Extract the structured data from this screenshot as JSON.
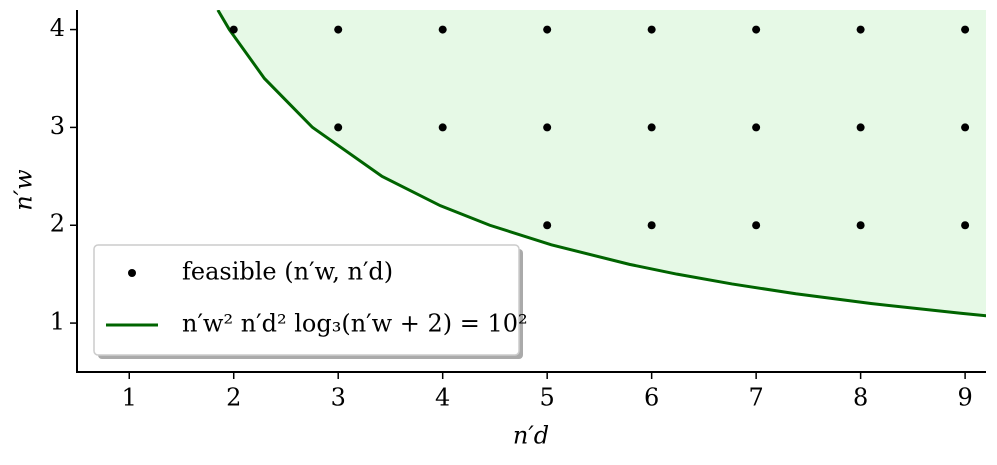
{
  "chart_data": {
    "type": "scatter",
    "xlabel": "n′d",
    "ylabel": "n′w",
    "xlim": [
      0.5,
      9.2
    ],
    "ylim": [
      0.5,
      4.2
    ],
    "xticks": [
      1,
      2,
      3,
      4,
      5,
      6,
      7,
      8,
      9
    ],
    "yticks": [
      1,
      2,
      3,
      4
    ],
    "fill_color": "#e6f9e6",
    "legend": "lower left",
    "series": [
      {
        "name": "feasible (n′w, n′d)",
        "type": "scatter",
        "color": "#000000",
        "x": [
          2,
          3,
          4,
          5,
          6,
          7,
          8,
          9,
          3,
          4,
          5,
          6,
          7,
          8,
          9,
          5,
          6,
          7,
          8,
          9
        ],
        "y": [
          4,
          4,
          4,
          4,
          4,
          4,
          4,
          4,
          3,
          3,
          3,
          3,
          3,
          3,
          3,
          2,
          2,
          2,
          2,
          2
        ]
      },
      {
        "name": "n′w² n′d² log₃(n′w + 2) = 10²",
        "type": "line",
        "color": "#006400",
        "x": [
          1.848,
          1.958,
          2.294,
          2.754,
          3.419,
          3.977,
          4.451,
          5.04,
          5.788,
          6.243,
          6.768,
          7.379,
          8.099,
          8.958,
          9.249
        ],
        "y": [
          4.2,
          4,
          3.5,
          3,
          2.5,
          2.2,
          2,
          1.8,
          1.6,
          1.5,
          1.4,
          1.3,
          1.2,
          1.1,
          1.07
        ]
      }
    ]
  }
}
